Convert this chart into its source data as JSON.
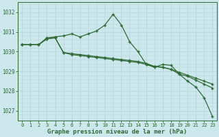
{
  "title": "Graphe pression niveau de la mer (hPa)",
  "background_color": "#cde8ec",
  "grid_major_color": "#b8d8dc",
  "grid_minor_color": "#d8ecee",
  "line_color": "#2d6a35",
  "x_labels": [
    "0",
    "1",
    "2",
    "3",
    "4",
    "5",
    "6",
    "7",
    "8",
    "9",
    "10",
    "11",
    "12",
    "13",
    "14",
    "15",
    "16",
    "17",
    "18",
    "19",
    "20",
    "21",
    "22",
    "23"
  ],
  "ylim": [
    1026.5,
    1032.5
  ],
  "yticks": [
    1027,
    1028,
    1029,
    1030,
    1031,
    1032
  ],
  "series1": [
    1030.35,
    1030.35,
    1030.35,
    1030.7,
    1030.75,
    1030.8,
    1030.9,
    1030.75,
    1030.9,
    1031.05,
    1031.35,
    1031.9,
    1031.35,
    1030.5,
    1030.0,
    1029.35,
    1029.2,
    1029.35,
    1029.3,
    1028.85,
    1028.5,
    1028.2,
    1027.65,
    1026.7
  ],
  "series2": [
    1030.35,
    1030.35,
    1030.35,
    1030.65,
    1030.7,
    1029.95,
    1029.9,
    1029.85,
    1029.8,
    1029.75,
    1029.7,
    1029.65,
    1029.6,
    1029.55,
    1029.5,
    1029.4,
    1029.25,
    1029.2,
    1029.1,
    1028.95,
    1028.8,
    1028.65,
    1028.5,
    1028.35
  ],
  "series3": [
    1030.35,
    1030.35,
    1030.35,
    1030.65,
    1030.7,
    1029.95,
    1029.85,
    1029.8,
    1029.75,
    1029.7,
    1029.65,
    1029.6,
    1029.55,
    1029.5,
    1029.45,
    1029.35,
    1029.25,
    1029.2,
    1029.1,
    1028.85,
    1028.75,
    1028.55,
    1028.35,
    1028.15
  ],
  "tick_fontsize": 5.5,
  "label_fontsize": 6.5
}
